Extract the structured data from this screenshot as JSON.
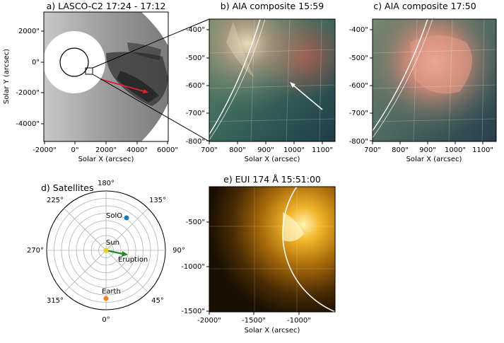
{
  "panels": {
    "a": {
      "title": "a) LASCO-C2 17:24 - 17:12",
      "xlabel": "Solar X (arcsec)",
      "ylabel": "Solar Y (arcsec)",
      "xticks": [
        "-2000\"",
        "0\"",
        "2000\"",
        "4000\"",
        "6000\""
      ],
      "yticks": [
        "2000\"",
        "0\"",
        "-2000\"",
        "-4000\""
      ]
    },
    "b": {
      "title": "b) AIA composite 15:59",
      "xlabel": "Solar X (arcsec)",
      "xticks": [
        "700\"",
        "800\"",
        "900\"",
        "1000\"",
        "1100\""
      ],
      "yticks": [
        "-400\"",
        "-500\"",
        "-600\"",
        "-700\"",
        "-800\""
      ]
    },
    "c": {
      "title": "c) AIA composite 17:50",
      "xlabel": "Solar X (arcsec)",
      "xticks": [
        "700\"",
        "800\"",
        "900\"",
        "1000\"",
        "1100\""
      ],
      "yticks": [
        "-400\"",
        "-500\"",
        "-600\"",
        "-700\"",
        "-800\""
      ]
    },
    "d": {
      "title": "d) Satellites",
      "angle_labels": {
        "a180": "180°",
        "a135": "135°",
        "a90": "90°",
        "a45": "45°",
        "a0": "0°",
        "a315": "315°",
        "a270": "270°",
        "a225": "225°"
      },
      "bodies": {
        "solo": "SolO",
        "sun": "Sun",
        "earth": "Earth",
        "eruption": "Eruption"
      }
    },
    "e": {
      "title": "e) EUI 174 Å 15:51:00",
      "xlabel": "Solar X (arcsec)",
      "xticks": [
        "-2000\"",
        "-1500\"",
        "-1000\""
      ],
      "yticks": [
        "-500\"",
        "-1000\"",
        "-1500\""
      ]
    }
  },
  "colors": {
    "eruption_arrow": "#1f8a1f",
    "solo": "#1f77b4",
    "earth": "#ff7f0e",
    "sun": "#e6d11a",
    "red_arrow": "#e0202a"
  }
}
